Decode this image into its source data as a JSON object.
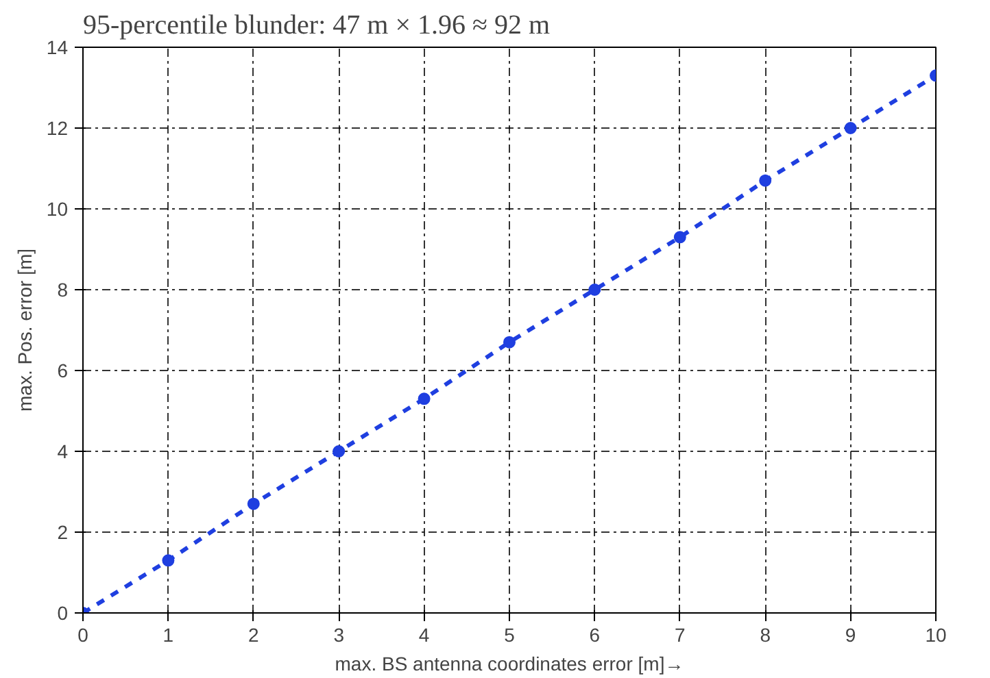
{
  "chart_data": {
    "type": "line",
    "title": "95-percentile blunder: 47 m × 1.96 ≈ 92 m",
    "xlabel": "max. BS antenna coordinates error [m]→",
    "ylabel": "max. Pos. error [m]",
    "x": [
      0,
      1,
      2,
      3,
      4,
      5,
      6,
      7,
      8,
      9,
      10
    ],
    "series": [
      {
        "color": "#1f3fe0",
        "values": [
          0,
          1.3,
          2.7,
          4.0,
          5.3,
          6.7,
          8.0,
          9.3,
          10.7,
          12.0,
          13.3
        ]
      }
    ],
    "xlim": [
      0,
      10
    ],
    "ylim": [
      0,
      14
    ],
    "xticks": [
      0,
      1,
      2,
      3,
      4,
      5,
      6,
      7,
      8,
      9,
      10
    ],
    "yticks": [
      0,
      2,
      4,
      6,
      8,
      10,
      12,
      14
    ],
    "grid": true,
    "marker": "circle",
    "line_style": "dashed"
  }
}
